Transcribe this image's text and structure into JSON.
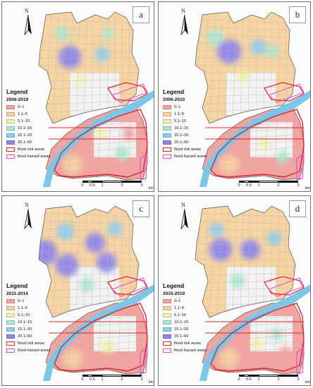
{
  "legend_title": "Legend",
  "legend_items": [
    {
      "label": "0–1",
      "color": "#f4a3a0"
    },
    {
      "label": "1.1–5",
      "color": "#f7d4a2"
    },
    {
      "label": "5.1–10",
      "color": "#f4f1a8"
    },
    {
      "label": "10.1–15",
      "color": "#aee8d0"
    },
    {
      "label": "15.1–20",
      "color": "#8fcff0"
    },
    {
      "label": "20.1–60",
      "color": "#8f86ec"
    }
  ],
  "boundary_items": [
    {
      "label": "flood risk areas",
      "color": "#e0242b"
    },
    {
      "label": "flood hazard areas",
      "color": "#e04fd4"
    }
  ],
  "north_label": "N",
  "scale": {
    "ticks": [
      "0",
      "0.5",
      "1",
      "2",
      "3"
    ],
    "unit": "km"
  },
  "panels": [
    {
      "letter": "a",
      "period": "2006-2019"
    },
    {
      "letter": "b",
      "period": "2006-2010"
    },
    {
      "letter": "c",
      "period": "2011-2014"
    },
    {
      "letter": "d",
      "period": "2015-2019"
    }
  ],
  "colors": {
    "river": "#7cc6e8",
    "risk": "#e0242b",
    "hazard": "#e04fd4",
    "roads": "#b8b8b8"
  }
}
